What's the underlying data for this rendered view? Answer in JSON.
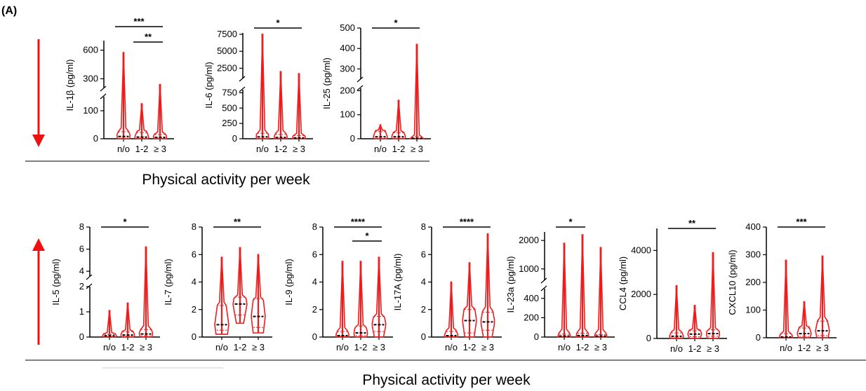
{
  "panel_label": "(A)",
  "colors": {
    "violin": "#ee1c1c",
    "median": "#000000",
    "arrow": "#ee1111",
    "axis": "#000000"
  },
  "groups": {
    "top": {
      "direction": "down",
      "xcaption": "Physical activity per week"
    },
    "bottom": {
      "direction": "up",
      "xcaption": "Physical activity per week"
    }
  },
  "chart_data": [
    {
      "type": "violin",
      "group": "top",
      "ylabel": "IL-1β (pg/ml)",
      "categories": [
        "n/o",
        "1-2",
        "≥ 3"
      ],
      "y_segments": [
        {
          "range": [
            0,
            150
          ],
          "ticks": [
            0,
            100
          ]
        },
        {
          "range": [
            200,
            700
          ],
          "ticks": [
            300,
            600
          ]
        }
      ],
      "series": [
        {
          "category": "n/o",
          "min": 0,
          "max": 575,
          "median": 8,
          "q1": 2,
          "q3": 25
        },
        {
          "category": "1-2",
          "min": 0,
          "max": 125,
          "median": 6,
          "q1": 2,
          "q3": 22
        },
        {
          "category": "≥ 3",
          "min": 0,
          "max": 240,
          "median": 5,
          "q1": 1,
          "q3": 15
        }
      ],
      "significance": [
        {
          "from": 0,
          "to": 2,
          "label": "***"
        },
        {
          "from": 1,
          "to": 2,
          "label": "**"
        }
      ]
    },
    {
      "type": "violin",
      "group": "top",
      "ylabel": "IL-6 (pg/ml)",
      "categories": [
        "n/o",
        "1-2",
        "≥ 3"
      ],
      "y_segments": [
        {
          "range": [
            0,
            800
          ],
          "ticks": [
            0,
            250,
            500,
            750
          ]
        },
        {
          "range": [
            1000,
            7700
          ],
          "ticks": [
            2500,
            5000,
            7500
          ]
        }
      ],
      "series": [
        {
          "category": "n/o",
          "min": 0,
          "max": 7500,
          "median": 30,
          "q1": 5,
          "q3": 90
        },
        {
          "category": "1-2",
          "min": 0,
          "max": 2000,
          "median": 20,
          "q1": 5,
          "q3": 70
        },
        {
          "category": "≥ 3",
          "min": 0,
          "max": 1700,
          "median": 15,
          "q1": 3,
          "q3": 50
        }
      ],
      "significance": [
        {
          "from": 0,
          "to": 2,
          "label": "*"
        }
      ]
    },
    {
      "type": "violin",
      "group": "top",
      "ylabel": "IL-25 (pg/ml)",
      "categories": [
        "n/o",
        "1-2",
        "≥ 3"
      ],
      "y_segments": [
        {
          "range": [
            0,
            210
          ],
          "ticks": [
            0,
            100,
            200
          ]
        },
        {
          "range": [
            250,
            500
          ],
          "ticks": [
            300,
            400,
            500
          ]
        }
      ],
      "series": [
        {
          "category": "n/o",
          "min": 0,
          "max": 58,
          "median": 8,
          "q1": 2,
          "q3": 30
        },
        {
          "category": "1-2",
          "min": 0,
          "max": 160,
          "median": 8,
          "q1": 2,
          "q3": 25
        },
        {
          "category": "≥ 3",
          "min": 0,
          "max": 420,
          "median": 2,
          "q1": 0,
          "q3": 10
        }
      ],
      "significance": [
        {
          "from": 0,
          "to": 2,
          "label": "*"
        }
      ]
    },
    {
      "type": "violin",
      "group": "bottom",
      "ylabel": "IL-5 (pg/ml)",
      "categories": [
        "n/o",
        "1-2",
        "≥ 3"
      ],
      "y_segments": [
        {
          "range": [
            0,
            2
          ],
          "ticks": [
            0,
            1,
            2
          ]
        },
        {
          "range": [
            3.5,
            8
          ],
          "ticks": [
            4,
            6,
            8
          ]
        }
      ],
      "series": [
        {
          "category": "n/o",
          "min": 0,
          "max": 1.05,
          "median": 0.05,
          "q1": 0.02,
          "q3": 0.1
        },
        {
          "category": "1-2",
          "min": 0,
          "max": 1.35,
          "median": 0.08,
          "q1": 0.03,
          "q3": 0.2
        },
        {
          "category": "≥ 3",
          "min": 0,
          "max": 6.2,
          "median": 0.12,
          "q1": 0.05,
          "q3": 0.3
        }
      ],
      "significance": [
        {
          "from": 0,
          "to": 2,
          "label": "*"
        }
      ]
    },
    {
      "type": "violin",
      "group": "bottom",
      "ylabel": "IL-7 (pg/ml)",
      "categories": [
        "n/o",
        "1-2",
        "≥ 3"
      ],
      "y_segments": [
        {
          "range": [
            0,
            8
          ],
          "ticks": [
            0,
            2,
            4,
            6,
            8
          ]
        }
      ],
      "series": [
        {
          "category": "n/o",
          "min": 0.2,
          "max": 5.8,
          "median": 0.9,
          "q1": 0.5,
          "q3": 2.3
        },
        {
          "category": "1-2",
          "min": 1.0,
          "max": 6.5,
          "median": 2.4,
          "q1": 1.6,
          "q3": 2.9
        },
        {
          "category": "≥ 3",
          "min": 0.3,
          "max": 6.0,
          "median": 1.5,
          "q1": 0.7,
          "q3": 2.8
        }
      ],
      "significance": [
        {
          "from": 0,
          "to": 2,
          "label": "**"
        }
      ]
    },
    {
      "type": "violin",
      "group": "bottom",
      "ylabel": "IL-9 (pg/ml)",
      "categories": [
        "n/o",
        "1-2",
        "≥ 3"
      ],
      "y_segments": [
        {
          "range": [
            0,
            8
          ],
          "ticks": [
            0,
            2,
            4,
            6,
            8
          ]
        }
      ],
      "series": [
        {
          "category": "n/o",
          "min": 0,
          "max": 5.5,
          "median": 0.1,
          "q1": 0.05,
          "q3": 0.4
        },
        {
          "category": "1-2",
          "min": 0,
          "max": 5.5,
          "median": 0.3,
          "q1": 0.1,
          "q3": 0.8
        },
        {
          "category": "≥ 3",
          "min": 0,
          "max": 5.8,
          "median": 0.9,
          "q1": 0.4,
          "q3": 1.5
        }
      ],
      "significance": [
        {
          "from": 0,
          "to": 2,
          "label": "****"
        },
        {
          "from": 1,
          "to": 2,
          "label": "*"
        }
      ]
    },
    {
      "type": "violin",
      "group": "bottom",
      "ylabel": "IL-17A (pg/ml)",
      "categories": [
        "n/o",
        "1-2",
        "≥ 3"
      ],
      "y_segments": [
        {
          "range": [
            0,
            8
          ],
          "ticks": [
            0,
            2,
            4,
            6,
            8
          ]
        }
      ],
      "series": [
        {
          "category": "n/o",
          "min": 0,
          "max": 4.0,
          "median": 0.1,
          "q1": 0.03,
          "q3": 0.4
        },
        {
          "category": "1-2",
          "min": 0,
          "max": 5.4,
          "median": 1.2,
          "q1": 0.3,
          "q3": 2.0
        },
        {
          "category": "≥ 3",
          "min": 0,
          "max": 7.5,
          "median": 1.1,
          "q1": 0.5,
          "q3": 1.8
        }
      ],
      "significance": [
        {
          "from": 0,
          "to": 2,
          "label": "****"
        }
      ]
    },
    {
      "type": "violin",
      "group": "bottom",
      "ylabel": "IL-23a (pg/ml)",
      "categories": [
        "n/o",
        "1-2",
        "≥ 3"
      ],
      "y_segments": [
        {
          "range": [
            0,
            500
          ],
          "ticks": [
            0,
            200,
            400
          ]
        },
        {
          "range": [
            600,
            2300
          ],
          "ticks": [
            1000,
            2000
          ]
        }
      ],
      "series": [
        {
          "category": "n/o",
          "min": 0,
          "max": 1900,
          "median": 10,
          "q1": 3,
          "q3": 30
        },
        {
          "category": "1-2",
          "min": 0,
          "max": 2200,
          "median": 15,
          "q1": 5,
          "q3": 40
        },
        {
          "category": "≥ 3",
          "min": 0,
          "max": 1750,
          "median": 10,
          "q1": 3,
          "q3": 25
        }
      ],
      "significance": [
        {
          "from": 0,
          "to": 1,
          "label": "*"
        }
      ]
    },
    {
      "type": "violin",
      "group": "bottom",
      "ylabel": "CCL4 (pg/ml)",
      "categories": [
        "n/o",
        "1-2",
        "≥ 3"
      ],
      "y_segments": [
        {
          "range": [
            0,
            5000
          ],
          "ticks": [
            0,
            2000,
            4000
          ]
        }
      ],
      "series": [
        {
          "category": "n/o",
          "min": 0,
          "max": 2400,
          "median": 100,
          "q1": 30,
          "q3": 250
        },
        {
          "category": "1-2",
          "min": 0,
          "max": 1500,
          "median": 200,
          "q1": 80,
          "q3": 350
        },
        {
          "category": "≥ 3",
          "min": 0,
          "max": 3900,
          "median": 220,
          "q1": 100,
          "q3": 400
        }
      ],
      "significance": [
        {
          "from": 0,
          "to": 2,
          "label": "**"
        }
      ]
    },
    {
      "type": "violin",
      "group": "bottom",
      "ylabel": "CXCL10 (pg/ml)",
      "categories": [
        "n/o",
        "1-2",
        "≥ 3"
      ],
      "y_segments": [
        {
          "range": [
            0,
            400
          ],
          "ticks": [
            0,
            100,
            200,
            300,
            400
          ]
        }
      ],
      "series": [
        {
          "category": "n/o",
          "min": 0,
          "max": 280,
          "median": 3,
          "q1": 1,
          "q3": 15
        },
        {
          "category": "1-2",
          "min": 0,
          "max": 130,
          "median": 15,
          "q1": 5,
          "q3": 35
        },
        {
          "category": "≥ 3",
          "min": 0,
          "max": 295,
          "median": 25,
          "q1": 8,
          "q3": 60
        }
      ],
      "significance": [
        {
          "from": 0,
          "to": 2,
          "label": "***"
        }
      ]
    }
  ]
}
